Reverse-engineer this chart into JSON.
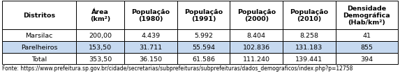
{
  "columns": [
    "Distritos",
    "Área\n(km²)",
    "População\n(1980)",
    "População\n(1991)",
    "População\n(2000)",
    "População\n(2010)",
    "Densidade\nDemográfica\n(Hab/km²)"
  ],
  "rows": [
    [
      "Marsilac",
      "200,00",
      "4.439",
      "5.992",
      "8.404",
      "8.258",
      "41"
    ],
    [
      "Parelheiros",
      "153,50",
      "31.711",
      "55.594",
      "102.836",
      "131.183",
      "855"
    ],
    [
      "Total",
      "353,50",
      "36.150",
      "61.586",
      "111.240",
      "139.441",
      "394"
    ]
  ],
  "footer": "Fonte: https://www.prefeitura.sp.gov.br/cidade/secretarias/subprefeituras/subprefeituras/dados_demograficos/index.php?p=12758",
  "header_bg": "#ffffff",
  "row0_bg": "#ffffff",
  "row1_bg": "#c6d9f0",
  "row2_bg": "#ffffff",
  "total_bg": "#ffffff",
  "border_color": "#000000",
  "text_color": "#000000",
  "col_widths_rel": [
    1.55,
    1.0,
    1.1,
    1.1,
    1.1,
    1.1,
    1.3
  ],
  "font_size": 6.8,
  "header_font_size": 6.8,
  "footer_font_size": 5.5,
  "lw": 0.7
}
